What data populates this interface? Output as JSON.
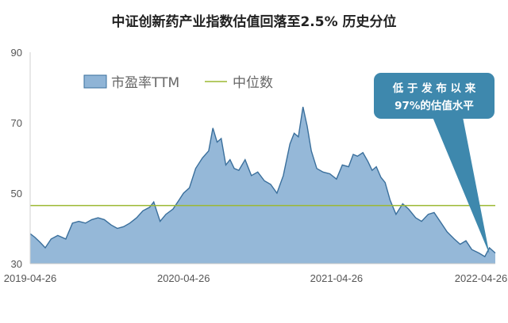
{
  "chart_data": {
    "type": "area",
    "title": "中证创新药产业指数估值回落至2.5% 历史分位",
    "xlabel": "",
    "ylabel": "",
    "ylim": [
      30,
      90
    ],
    "yticks": [
      30,
      50,
      70,
      90
    ],
    "xticks": [
      "2019-04-26",
      "2020-04-26",
      "2021-04-26",
      "2022-04-26"
    ],
    "xlim": [
      "2019-04-26",
      "2022-05-10"
    ],
    "grid": false,
    "legend_position": "top-left",
    "colors": {
      "area_fill": "#8fb4d6",
      "area_line": "#3a6f9c",
      "median_line": "#9cb832",
      "callout": "#3e88ad"
    },
    "series": [
      {
        "name": "市盈率TTM",
        "type": "area",
        "x": [
          "2019-04-26",
          "2019-05-07",
          "2019-05-20",
          "2019-06-01",
          "2019-06-15",
          "2019-07-01",
          "2019-07-20",
          "2019-08-05",
          "2019-08-20",
          "2019-09-05",
          "2019-09-20",
          "2019-10-05",
          "2019-10-20",
          "2019-11-05",
          "2019-11-20",
          "2019-12-05",
          "2019-12-20",
          "2020-01-05",
          "2020-01-20",
          "2020-02-05",
          "2020-02-15",
          "2020-03-01",
          "2020-03-15",
          "2020-04-01",
          "2020-04-15",
          "2020-04-26",
          "2020-05-10",
          "2020-05-25",
          "2020-06-10",
          "2020-06-25",
          "2020-07-05",
          "2020-07-15",
          "2020-07-25",
          "2020-08-05",
          "2020-08-15",
          "2020-08-25",
          "2020-09-05",
          "2020-09-20",
          "2020-10-05",
          "2020-10-20",
          "2020-11-05",
          "2020-11-20",
          "2020-12-05",
          "2020-12-20",
          "2021-01-05",
          "2021-01-15",
          "2021-01-25",
          "2021-02-05",
          "2021-02-15",
          "2021-02-25",
          "2021-03-10",
          "2021-03-25",
          "2021-04-10",
          "2021-04-26",
          "2021-05-10",
          "2021-05-25",
          "2021-06-05",
          "2021-06-15",
          "2021-06-28",
          "2021-07-10",
          "2021-07-20",
          "2021-07-30",
          "2021-08-10",
          "2021-08-20",
          "2021-09-01",
          "2021-09-15",
          "2021-10-01",
          "2021-10-15",
          "2021-11-01",
          "2021-11-15",
          "2021-12-01",
          "2021-12-15",
          "2022-01-01",
          "2022-01-15",
          "2022-02-01",
          "2022-02-15",
          "2022-03-01",
          "2022-03-15",
          "2022-04-01",
          "2022-04-15",
          "2022-04-26",
          "2022-05-10"
        ],
        "values": [
          38.5,
          37.5,
          36.0,
          34.5,
          37.0,
          38.0,
          37.0,
          41.5,
          42.0,
          41.5,
          42.5,
          43.0,
          42.5,
          41.0,
          40.0,
          40.5,
          41.5,
          43.0,
          45.0,
          46.0,
          47.5,
          42.0,
          44.0,
          45.5,
          48.0,
          50.0,
          51.5,
          57.0,
          60.0,
          62.0,
          68.5,
          64.5,
          65.5,
          58.0,
          59.5,
          57.0,
          56.5,
          59.5,
          55.0,
          56.0,
          53.5,
          52.5,
          50.0,
          55.0,
          64.0,
          67.0,
          66.0,
          74.5,
          69.0,
          62.0,
          57.0,
          56.0,
          55.5,
          54.0,
          58.0,
          57.5,
          61.0,
          60.5,
          61.5,
          59.0,
          56.5,
          57.5,
          54.5,
          53.0,
          48.0,
          44.0,
          47.0,
          45.5,
          43.0,
          42.0,
          44.0,
          44.5,
          41.5,
          39.0,
          37.0,
          35.5,
          36.5,
          34.0,
          33.0,
          32.0,
          34.5,
          33.0
        ]
      },
      {
        "name": "中位数",
        "type": "line",
        "value": 46.5
      }
    ],
    "annotations": [
      {
        "text_line1": "低 于 发 布 以 来",
        "text_line2": "97%的估值水平",
        "points_to": "2022-04-26"
      }
    ]
  }
}
